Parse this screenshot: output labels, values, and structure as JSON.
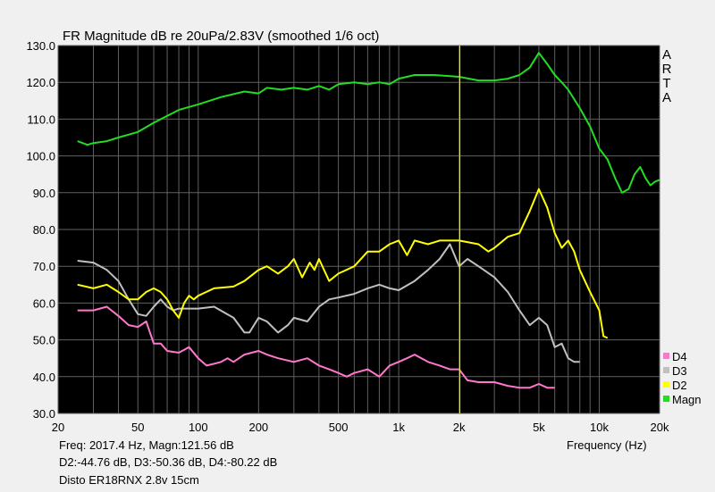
{
  "chart_data": {
    "type": "line",
    "title": "FR Magnitude dB re 20uPa/2.83V (smoothed 1/6 oct)",
    "xlabel": "Frequency (Hz)",
    "ylabel": "",
    "x_scale": "log",
    "xlim": [
      20,
      20000
    ],
    "ylim": [
      30,
      130
    ],
    "grid": true,
    "legend_position": "bottom-right",
    "x_ticks": [
      {
        "value": 20,
        "label": "20"
      },
      {
        "value": 50,
        "label": "50"
      },
      {
        "value": 100,
        "label": "100"
      },
      {
        "value": 200,
        "label": "200"
      },
      {
        "value": 500,
        "label": "500"
      },
      {
        "value": 1000,
        "label": "1k"
      },
      {
        "value": 2000,
        "label": "2k"
      },
      {
        "value": 5000,
        "label": "5k"
      },
      {
        "value": 10000,
        "label": "10k"
      },
      {
        "value": 20000,
        "label": "20k"
      }
    ],
    "y_ticks": [
      {
        "value": 130,
        "label": "130.0"
      },
      {
        "value": 120,
        "label": "120.0"
      },
      {
        "value": 110,
        "label": "110.0"
      },
      {
        "value": 100,
        "label": "100.0"
      },
      {
        "value": 90,
        "label": "90.0"
      },
      {
        "value": 80,
        "label": "80.0"
      },
      {
        "value": 70,
        "label": "70.0"
      },
      {
        "value": 60,
        "label": "60.0"
      },
      {
        "value": 50,
        "label": "50.0"
      },
      {
        "value": 40,
        "label": "40.0"
      },
      {
        "value": 30,
        "label": "30.0"
      }
    ],
    "cursor_freq": 2017.4,
    "series": [
      {
        "name": "Magn",
        "color": "#22dd22",
        "points": [
          [
            25,
            104
          ],
          [
            28,
            103
          ],
          [
            30,
            103.5
          ],
          [
            35,
            104
          ],
          [
            40,
            105
          ],
          [
            50,
            106.5
          ],
          [
            60,
            109
          ],
          [
            80,
            112.5
          ],
          [
            100,
            114
          ],
          [
            130,
            116
          ],
          [
            170,
            117.5
          ],
          [
            200,
            117
          ],
          [
            220,
            118.5
          ],
          [
            260,
            118
          ],
          [
            300,
            118.5
          ],
          [
            350,
            118
          ],
          [
            400,
            119
          ],
          [
            450,
            118
          ],
          [
            500,
            119.5
          ],
          [
            600,
            120
          ],
          [
            700,
            119.5
          ],
          [
            800,
            120
          ],
          [
            900,
            119.5
          ],
          [
            1000,
            121
          ],
          [
            1200,
            122
          ],
          [
            1500,
            122
          ],
          [
            2000,
            121.5
          ],
          [
            2500,
            120.5
          ],
          [
            3000,
            120.5
          ],
          [
            3500,
            121
          ],
          [
            4000,
            122
          ],
          [
            4500,
            124
          ],
          [
            5000,
            128
          ],
          [
            5500,
            125
          ],
          [
            6000,
            122
          ],
          [
            6500,
            120
          ],
          [
            7000,
            118
          ],
          [
            8000,
            113
          ],
          [
            9000,
            108
          ],
          [
            10000,
            102
          ],
          [
            11000,
            99
          ],
          [
            12000,
            94
          ],
          [
            13000,
            90
          ],
          [
            14000,
            91
          ],
          [
            15000,
            95
          ],
          [
            16000,
            97
          ],
          [
            17000,
            94
          ],
          [
            18000,
            92
          ],
          [
            19000,
            93
          ],
          [
            20000,
            93.5
          ]
        ]
      },
      {
        "name": "D2",
        "color": "#ffff00",
        "points": [
          [
            25,
            65
          ],
          [
            30,
            64
          ],
          [
            35,
            65
          ],
          [
            40,
            63
          ],
          [
            45,
            61
          ],
          [
            50,
            61
          ],
          [
            55,
            63
          ],
          [
            60,
            64
          ],
          [
            65,
            63
          ],
          [
            70,
            61
          ],
          [
            75,
            58
          ],
          [
            80,
            56
          ],
          [
            85,
            60
          ],
          [
            90,
            62
          ],
          [
            95,
            61
          ],
          [
            100,
            62
          ],
          [
            120,
            64
          ],
          [
            150,
            64.5
          ],
          [
            170,
            66
          ],
          [
            200,
            69
          ],
          [
            220,
            70
          ],
          [
            250,
            68
          ],
          [
            280,
            70
          ],
          [
            300,
            72
          ],
          [
            330,
            67
          ],
          [
            360,
            71
          ],
          [
            380,
            69
          ],
          [
            400,
            72
          ],
          [
            450,
            66
          ],
          [
            500,
            68
          ],
          [
            600,
            70
          ],
          [
            700,
            74
          ],
          [
            800,
            74
          ],
          [
            900,
            76
          ],
          [
            1000,
            77
          ],
          [
            1100,
            73
          ],
          [
            1200,
            77
          ],
          [
            1400,
            76
          ],
          [
            1600,
            77
          ],
          [
            2000,
            77
          ],
          [
            2500,
            76
          ],
          [
            2800,
            74
          ],
          [
            3000,
            75
          ],
          [
            3500,
            78
          ],
          [
            4000,
            79
          ],
          [
            4500,
            85
          ],
          [
            5000,
            91
          ],
          [
            5500,
            86
          ],
          [
            6000,
            79
          ],
          [
            6500,
            75
          ],
          [
            7000,
            77
          ],
          [
            7500,
            74
          ],
          [
            8000,
            69
          ],
          [
            9000,
            63
          ],
          [
            10000,
            58
          ],
          [
            10500,
            51
          ],
          [
            11000,
            50.5
          ]
        ]
      },
      {
        "name": "D3",
        "color": "#c0c0c0",
        "points": [
          [
            25,
            71.5
          ],
          [
            30,
            71
          ],
          [
            35,
            69
          ],
          [
            40,
            66
          ],
          [
            45,
            61
          ],
          [
            50,
            57
          ],
          [
            55,
            56.5
          ],
          [
            60,
            59
          ],
          [
            65,
            61
          ],
          [
            70,
            59
          ],
          [
            75,
            58
          ],
          [
            80,
            58.5
          ],
          [
            100,
            58.5
          ],
          [
            120,
            59
          ],
          [
            150,
            56
          ],
          [
            170,
            52
          ],
          [
            180,
            52
          ],
          [
            200,
            56
          ],
          [
            220,
            55
          ],
          [
            250,
            52
          ],
          [
            280,
            54
          ],
          [
            300,
            56
          ],
          [
            350,
            55
          ],
          [
            400,
            59
          ],
          [
            450,
            61
          ],
          [
            500,
            61.5
          ],
          [
            600,
            62.5
          ],
          [
            700,
            64
          ],
          [
            800,
            65
          ],
          [
            900,
            64
          ],
          [
            1000,
            63.5
          ],
          [
            1200,
            66
          ],
          [
            1400,
            69
          ],
          [
            1600,
            72
          ],
          [
            1800,
            76
          ],
          [
            2000,
            70
          ],
          [
            2200,
            72
          ],
          [
            2500,
            70
          ],
          [
            3000,
            67
          ],
          [
            3500,
            63
          ],
          [
            4000,
            58
          ],
          [
            4500,
            54
          ],
          [
            5000,
            56
          ],
          [
            5500,
            54
          ],
          [
            6000,
            48
          ],
          [
            6500,
            49
          ],
          [
            7000,
            45
          ],
          [
            7500,
            44
          ],
          [
            8000,
            44
          ]
        ]
      },
      {
        "name": "D4",
        "color": "#ff77cc",
        "points": [
          [
            25,
            58
          ],
          [
            30,
            58
          ],
          [
            35,
            59
          ],
          [
            40,
            56.5
          ],
          [
            45,
            54
          ],
          [
            50,
            53.5
          ],
          [
            55,
            55
          ],
          [
            60,
            49
          ],
          [
            65,
            49
          ],
          [
            70,
            47
          ],
          [
            80,
            46.5
          ],
          [
            90,
            48
          ],
          [
            100,
            45
          ],
          [
            110,
            43
          ],
          [
            120,
            43.5
          ],
          [
            130,
            44
          ],
          [
            140,
            45
          ],
          [
            150,
            44
          ],
          [
            170,
            46
          ],
          [
            200,
            47
          ],
          [
            220,
            46
          ],
          [
            250,
            45
          ],
          [
            300,
            44
          ],
          [
            350,
            45
          ],
          [
            400,
            43
          ],
          [
            450,
            42
          ],
          [
            500,
            41
          ],
          [
            550,
            40
          ],
          [
            600,
            41
          ],
          [
            700,
            42
          ],
          [
            800,
            40
          ],
          [
            900,
            43
          ],
          [
            1000,
            44
          ],
          [
            1100,
            45
          ],
          [
            1200,
            46
          ],
          [
            1400,
            44
          ],
          [
            1600,
            43
          ],
          [
            1800,
            42
          ],
          [
            2000,
            42
          ],
          [
            2200,
            39
          ],
          [
            2500,
            38.5
          ],
          [
            3000,
            38.5
          ],
          [
            3500,
            37.5
          ],
          [
            4000,
            37
          ],
          [
            4500,
            37
          ],
          [
            5000,
            38
          ],
          [
            5500,
            37
          ],
          [
            6000,
            37
          ]
        ]
      }
    ]
  },
  "arta_label": [
    "A",
    "R",
    "T",
    "A"
  ],
  "legend": [
    {
      "label": "D4",
      "color": "#ff77cc"
    },
    {
      "label": "D3",
      "color": "#c0c0c0"
    },
    {
      "label": "D2",
      "color": "#ffff00"
    },
    {
      "label": "Magn",
      "color": "#22dd22"
    }
  ],
  "readout": {
    "line1": "Freq: 2017.4 Hz, Magn:121.56 dB",
    "line2": "D2:-44.76 dB, D3:-50.36 dB, D4:-80.22 dB",
    "line3": "Disto ER18RNX 2.8v 15cm"
  },
  "colors": {
    "plot_bg": "#000000",
    "grid": "#606060",
    "cursor": "#e0e070",
    "frame": "#cccccc"
  }
}
